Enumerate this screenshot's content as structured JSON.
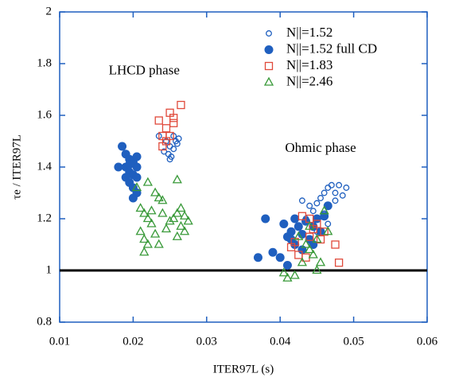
{
  "chart_data": {
    "type": "scatter",
    "xlabel": "ITER97L (s)",
    "ylabel": "τe / ITER97L",
    "xlim": [
      0.01,
      0.06
    ],
    "xticks": [
      0.01,
      0.02,
      0.03,
      0.04,
      0.05,
      0.06
    ],
    "ylim": [
      0.8,
      2
    ],
    "yticks": [
      0.8,
      1,
      1.2,
      1.4,
      1.6,
      1.8,
      2
    ],
    "hline": 1,
    "annotations": [
      {
        "text": "LHCD phase",
        "x": 0.0215,
        "y": 1.77
      },
      {
        "text": "Ohmic phase",
        "x": 0.0455,
        "y": 1.47
      }
    ],
    "legend": "upper right",
    "series": [
      {
        "name": "N||=1.52",
        "color": "#1f5fbf",
        "marker": "open-circle",
        "x": [
          0.0235,
          0.0245,
          0.025,
          0.0255,
          0.0248,
          0.025,
          0.0252,
          0.0258,
          0.026,
          0.0242,
          0.0262,
          0.0255,
          0.046,
          0.0465,
          0.047,
          0.048,
          0.049,
          0.0475,
          0.0485,
          0.0455,
          0.045,
          0.044,
          0.043,
          0.0435,
          0.046,
          0.0465,
          0.045,
          0.0475,
          0.0445
        ],
        "values": [
          1.52,
          1.5,
          1.48,
          1.47,
          1.45,
          1.43,
          1.44,
          1.5,
          1.49,
          1.46,
          1.51,
          1.52,
          1.3,
          1.32,
          1.33,
          1.33,
          1.32,
          1.3,
          1.29,
          1.28,
          1.26,
          1.25,
          1.27,
          1.2,
          1.22,
          1.18,
          1.15,
          1.27,
          1.23
        ]
      },
      {
        "name": "N||=1.52 full CD",
        "color": "#1f5fbf",
        "marker": "filled-circle",
        "x": [
          0.0185,
          0.019,
          0.0195,
          0.02,
          0.0205,
          0.018,
          0.019,
          0.0195,
          0.02,
          0.0205,
          0.0195,
          0.02,
          0.0205,
          0.02,
          0.0205,
          0.019,
          0.0195,
          0.037,
          0.038,
          0.039,
          0.04,
          0.0405,
          0.041,
          0.0415,
          0.042,
          0.0425,
          0.043,
          0.0435,
          0.044,
          0.0445,
          0.045,
          0.0455,
          0.046,
          0.0465,
          0.042,
          0.043,
          0.0415,
          0.0445,
          0.041
        ],
        "values": [
          1.48,
          1.45,
          1.43,
          1.42,
          1.44,
          1.4,
          1.4,
          1.38,
          1.37,
          1.36,
          1.34,
          1.32,
          1.3,
          1.28,
          1.4,
          1.36,
          1.41,
          1.05,
          1.2,
          1.07,
          1.05,
          1.18,
          1.13,
          1.15,
          1.2,
          1.17,
          1.14,
          1.19,
          1.12,
          1.17,
          1.2,
          1.15,
          1.21,
          1.25,
          1.1,
          1.08,
          1.12,
          1.1,
          1.02
        ]
      },
      {
        "name": "N||=1.83",
        "color": "#e0493a",
        "marker": "open-square",
        "x": [
          0.0235,
          0.024,
          0.0245,
          0.025,
          0.0255,
          0.0255,
          0.0265,
          0.024,
          0.025,
          0.0245,
          0.0415,
          0.042,
          0.043,
          0.0435,
          0.044,
          0.0445,
          0.045,
          0.0455,
          0.046,
          0.0475,
          0.048,
          0.0425,
          0.044
        ],
        "values": [
          1.58,
          1.52,
          1.5,
          1.61,
          1.57,
          1.59,
          1.64,
          1.48,
          1.52,
          1.55,
          1.09,
          1.11,
          1.21,
          1.05,
          1.13,
          1.16,
          1.18,
          1.12,
          1.15,
          1.1,
          1.03,
          1.06,
          1.2
        ]
      },
      {
        "name": "N||=2.46",
        "color": "#3a9a3a",
        "marker": "open-triangle",
        "x": [
          0.0205,
          0.022,
          0.021,
          0.0215,
          0.022,
          0.023,
          0.0235,
          0.024,
          0.0225,
          0.021,
          0.0215,
          0.022,
          0.023,
          0.0235,
          0.024,
          0.0245,
          0.025,
          0.026,
          0.026,
          0.0265,
          0.027,
          0.0265,
          0.027,
          0.0255,
          0.0215,
          0.0225,
          0.0275,
          0.026,
          0.0405,
          0.041,
          0.042,
          0.043,
          0.0435,
          0.044,
          0.0445,
          0.045,
          0.0455,
          0.046,
          0.0465,
          0.0425,
          0.044,
          0.045
        ],
        "values": [
          1.32,
          1.34,
          1.24,
          1.22,
          1.2,
          1.3,
          1.28,
          1.27,
          1.18,
          1.15,
          1.12,
          1.1,
          1.14,
          1.1,
          1.22,
          1.16,
          1.19,
          1.35,
          1.22,
          1.24,
          1.21,
          1.17,
          1.15,
          1.2,
          1.07,
          1.23,
          1.19,
          1.13,
          0.99,
          0.97,
          0.98,
          1.03,
          1.1,
          1.08,
          1.06,
          1.12,
          1.03,
          1.23,
          1.15,
          1.13,
          1.17,
          1.0
        ]
      }
    ]
  }
}
